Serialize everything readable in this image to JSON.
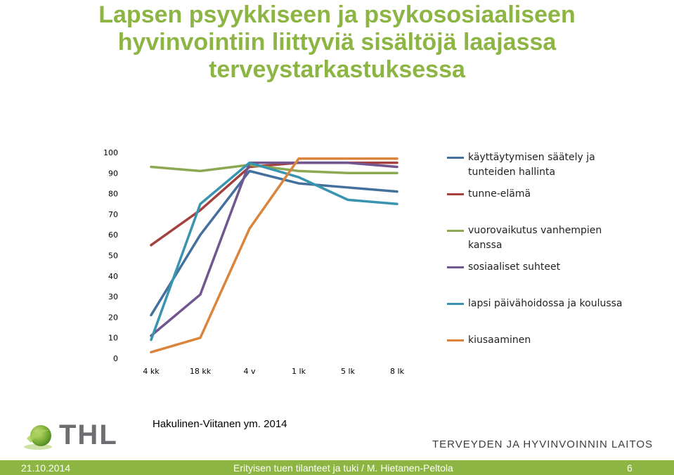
{
  "slide": {
    "title_lines": [
      "Lapsen psyykkiseen ja psykososiaaliseen",
      "hyvinvointiin liittyviä sisältöjä laajassa",
      "terveystarkastuksessa"
    ],
    "source": "Hakulinen-Viitanen ym. 2014",
    "logo_text": "THL",
    "organization": "TERVEYDEN JA HYVINVOINNIN LAITOS",
    "footer": {
      "date": "21.10.2014",
      "center": "Erityisen tuen tilanteet ja tuki / M. Hietanen-Peltola",
      "page": "6"
    },
    "colors": {
      "title": "#8DB543",
      "footer_bg": "#8DB543"
    }
  },
  "chart_data": {
    "type": "line",
    "categories": [
      "4 kk",
      "18 kk",
      "4 v",
      "1 lk",
      "5 lk",
      "8 lk"
    ],
    "ylim": [
      0,
      100
    ],
    "y_ticks": [
      "0",
      "10",
      "20",
      "30",
      "40",
      "50",
      "60",
      "70",
      "80",
      "90",
      "100"
    ],
    "grid": false,
    "legend_position": "right",
    "series": [
      {
        "name": "käyttäytymisen säätely ja tunteiden hallinta",
        "color": "#44709D",
        "values": [
          21,
          60,
          91,
          85,
          83,
          81
        ]
      },
      {
        "name": "tunne-elämä",
        "color": "#A4413E",
        "values": [
          55,
          72,
          93,
          95,
          95,
          95
        ]
      },
      {
        "name": "vuorovaikutus vanhempien kanssa",
        "color": "#8CA853",
        "values": [
          93,
          91,
          94,
          91,
          90,
          90
        ]
      },
      {
        "name": "sosiaaliset suhteet",
        "color": "#715690",
        "values": [
          11,
          31,
          95,
          95,
          95,
          93
        ]
      },
      {
        "name": "lapsi päivähoidossa ja koulussa",
        "color": "#3995AF",
        "values": [
          9,
          75,
          95,
          88,
          77,
          75
        ]
      },
      {
        "name": "kiusaaminen",
        "color": "#DA843C",
        "values": [
          3,
          10,
          63,
          97,
          97,
          97
        ]
      }
    ]
  }
}
